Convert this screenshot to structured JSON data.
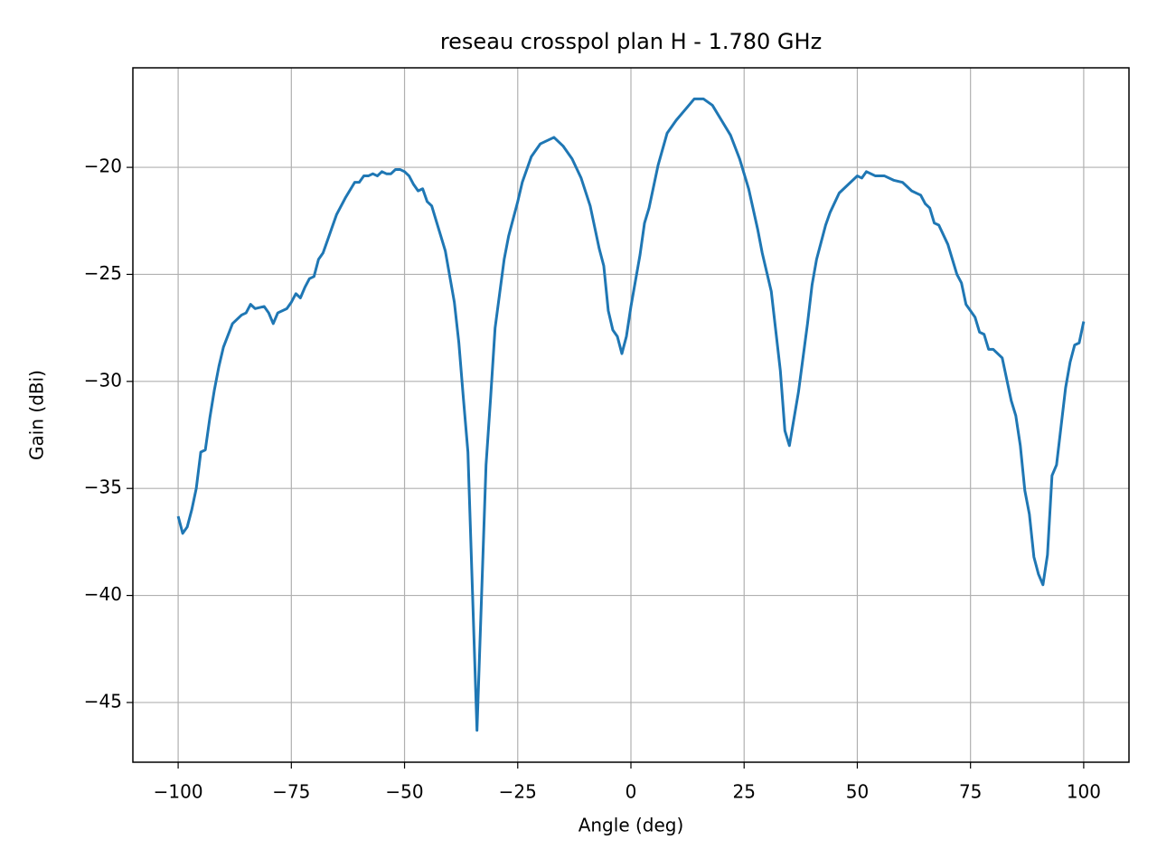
{
  "chart_data": {
    "type": "line",
    "title": "reseau crosspol plan H - 1.780 GHz",
    "x_label": "Angle (deg)",
    "y_label": "Gain (dBi)",
    "xlim": [
      -110,
      110
    ],
    "ylim": [
      -47.79,
      -15.35
    ],
    "grid": true,
    "xticks": [
      {
        "value": -100,
        "label": "−100"
      },
      {
        "value": -75,
        "label": "−75"
      },
      {
        "value": -50,
        "label": "−50"
      },
      {
        "value": -25,
        "label": "−25"
      },
      0,
      25,
      50,
      75,
      100
    ],
    "yticks": [
      {
        "value": -45,
        "label": "−45"
      },
      {
        "value": -40,
        "label": "−40"
      },
      {
        "value": -35,
        "label": "−35"
      },
      {
        "value": -30,
        "label": "−30"
      },
      {
        "value": -25,
        "label": "−25"
      },
      {
        "value": -20,
        "label": "−20"
      }
    ],
    "x": [
      -100,
      -99,
      -98,
      -97,
      -96,
      -95,
      -94,
      -93,
      -92,
      -91,
      -90,
      -88,
      -86,
      -85,
      -84,
      -83,
      -81,
      -80,
      -79,
      -78,
      -76,
      -75,
      -74,
      -73,
      -72,
      -71,
      -70,
      -69,
      -68,
      -67,
      -65,
      -63,
      -61,
      -60,
      -59,
      -58,
      -57,
      -56,
      -55,
      -54,
      -53,
      -52,
      -51,
      -50,
      -49,
      -48,
      -47,
      -46,
      -45,
      -44,
      -43,
      -42,
      -41,
      -40,
      -39,
      -38,
      -37,
      -36,
      -34,
      -33,
      -32,
      -31,
      -30,
      -29,
      -28,
      -27,
      -25,
      -24,
      -22,
      -20,
      -18,
      -17,
      -15,
      -13,
      -11,
      -9,
      -7,
      -6,
      -5,
      -4,
      -3,
      -2,
      -1,
      0,
      2,
      3,
      4,
      6,
      8,
      10,
      12,
      14,
      16,
      18,
      20,
      22,
      24,
      26,
      28,
      29,
      31,
      33,
      34,
      35,
      37,
      39,
      40,
      41,
      43,
      44,
      46,
      48,
      50,
      51,
      52,
      54,
      56,
      58,
      60,
      61,
      62,
      64,
      65,
      66,
      67,
      68,
      70,
      72,
      73,
      74,
      76,
      77,
      78,
      79,
      80,
      82,
      84,
      85,
      86,
      87,
      88,
      89,
      90,
      91,
      92,
      93,
      94,
      96,
      97,
      98,
      99,
      100
    ],
    "series": [
      {
        "color": "#1f77b4",
        "values": [
          -36.3,
          -37.1,
          -36.8,
          -36.0,
          -35.0,
          -33.3,
          -33.2,
          -31.7,
          -30.4,
          -29.3,
          -28.4,
          -27.3,
          -26.9,
          -26.8,
          -26.4,
          -26.6,
          -26.5,
          -26.8,
          -27.3,
          -26.8,
          -26.6,
          -26.3,
          -25.9,
          -26.1,
          -25.6,
          -25.2,
          -25.1,
          -24.3,
          -24.0,
          -23.4,
          -22.2,
          -21.4,
          -20.7,
          -20.7,
          -20.4,
          -20.4,
          -20.3,
          -20.4,
          -20.2,
          -20.3,
          -20.3,
          -20.1,
          -20.1,
          -20.2,
          -20.4,
          -20.8,
          -21.1,
          -21.0,
          -21.6,
          -21.8,
          -22.5,
          -23.2,
          -23.9,
          -25.1,
          -26.3,
          -28.2,
          -30.8,
          -33.3,
          -46.3,
          -40.1,
          -33.9,
          -30.8,
          -27.5,
          -25.9,
          -24.3,
          -23.2,
          -21.6,
          -20.7,
          -19.5,
          -18.9,
          -18.7,
          -18.6,
          -19.0,
          -19.6,
          -20.5,
          -21.8,
          -23.8,
          -24.6,
          -26.7,
          -27.6,
          -27.9,
          -28.7,
          -27.9,
          -26.5,
          -24.1,
          -22.6,
          -21.9,
          -19.9,
          -18.4,
          -17.8,
          -17.3,
          -16.8,
          -16.8,
          -17.1,
          -17.8,
          -18.5,
          -19.6,
          -21.0,
          -22.9,
          -24.0,
          -25.8,
          -29.5,
          -32.3,
          -33.0,
          -30.5,
          -27.3,
          -25.5,
          -24.3,
          -22.7,
          -22.1,
          -21.2,
          -20.8,
          -20.4,
          -20.5,
          -20.2,
          -20.4,
          -20.4,
          -20.6,
          -20.7,
          -20.9,
          -21.1,
          -21.3,
          -21.7,
          -21.9,
          -22.6,
          -22.7,
          -23.6,
          -25.0,
          -25.4,
          -26.4,
          -27.0,
          -27.7,
          -27.8,
          -28.5,
          -28.5,
          -28.9,
          -30.9,
          -31.6,
          -33.0,
          -35.1,
          -36.2,
          -38.2,
          -39.0,
          -39.5,
          -38.1,
          -34.4,
          -33.9,
          -30.3,
          -29.1,
          -28.3,
          -28.2,
          -27.2
        ]
      }
    ]
  }
}
